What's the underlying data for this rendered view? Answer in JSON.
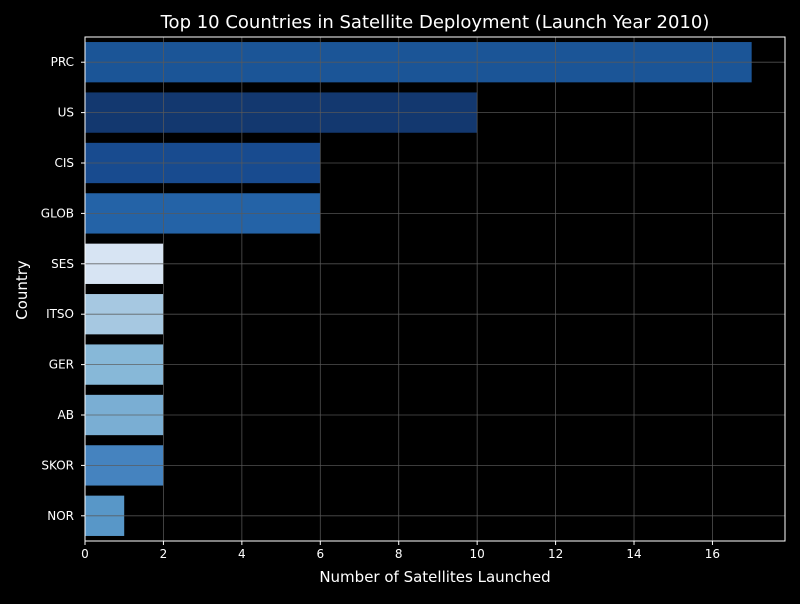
{
  "chart_data": {
    "type": "bar",
    "orientation": "horizontal",
    "title": "Top 10 Countries in Satellite Deployment (Launch Year 2010)",
    "xlabel": "Number of Satellites Launched",
    "ylabel": "Country",
    "categories": [
      "PRC",
      "US",
      "CIS",
      "GLOB",
      "SES",
      "ITSO",
      "GER",
      "AB",
      "SKOR",
      "NOR"
    ],
    "values": [
      17,
      10,
      6,
      6,
      2,
      2,
      2,
      2,
      2,
      1
    ],
    "bar_colors": [
      "#1b5597",
      "#13386f",
      "#184b8f",
      "#2463a7",
      "#d7e4f3",
      "#a6c8e1",
      "#87b8d8",
      "#7aaed3",
      "#4583bf",
      "#5897c8"
    ],
    "xlim": [
      0,
      17.85
    ],
    "xticks": [
      0,
      2,
      4,
      6,
      8,
      10,
      12,
      14,
      16
    ],
    "grid": true,
    "background": "#000000",
    "text_color": "#ffffff",
    "grid_color": "#5a5a5a"
  }
}
